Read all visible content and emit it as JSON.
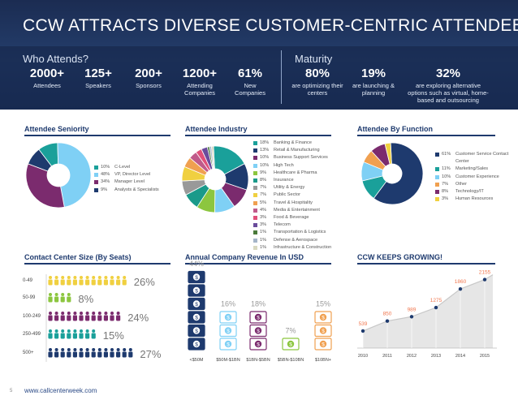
{
  "header": {
    "title": "CCW ATTRACTS DIVERSE CUSTOMER-CENTRIC ATTENDEES",
    "who_label": "Who Attends?",
    "maturity_label": "Maturity"
  },
  "who_stats": [
    {
      "num": "2000+",
      "label": "Attendees"
    },
    {
      "num": "125+",
      "label": "Speakers"
    },
    {
      "num": "200+",
      "label": "Sponsors"
    },
    {
      "num": "1200+",
      "label": "Attending Companies"
    },
    {
      "num": "61%",
      "label": "New Companies"
    }
  ],
  "maturity_stats": [
    {
      "num": "80%",
      "label": "are optimizing their centers"
    },
    {
      "num": "19%",
      "label": "are launching & planning"
    },
    {
      "num": "32%",
      "label": "are exploring alternative options such as virtual, home-based and outsourcing"
    }
  ],
  "panels": {
    "seniority": "Attendee Seniority",
    "industry": "Attendee Industry",
    "function": "Attendee By Function",
    "center_size": "Contact Center Size (By Seats)",
    "revenue": "Annual Company Revenue In USD",
    "growing": "CCW KEEPS GROWING!"
  },
  "colors": {
    "navy": "#1e3a6e",
    "teal": "#1aa09a",
    "purple": "#7b2b6e",
    "green": "#8cc63f",
    "lightblue": "#7fd0f5",
    "gray": "#999999",
    "orange": "#f0a050"
  },
  "footer": {
    "page": "5",
    "url": "www.callcenterweek.com"
  },
  "chart_data": [
    {
      "type": "pie",
      "title": "Attendee Seniority",
      "categories": [
        "C-Level",
        "VP, Director Level",
        "Manager Level",
        "Analysts & Specialists"
      ],
      "values": [
        10,
        48,
        34,
        9
      ],
      "labels": [
        "10%",
        "48%",
        "34%",
        "9%"
      ],
      "colors": [
        "#1aa09a",
        "#7fd0f5",
        "#7b2b6e",
        "#1e3a6e"
      ]
    },
    {
      "type": "pie",
      "title": "Attendee Industry",
      "categories": [
        "Banking & Finance",
        "Retail & Manufacturing",
        "Business Support Services",
        "High Tech",
        "Healthcare & Pharma",
        "Insurance",
        "Utility & Energy",
        "Public Sector",
        "Travel & Hospitality",
        "Media & Entertainment",
        "Food & Beverage",
        "Telecom",
        "Transportation & Logistics",
        "Defense & Aerospace",
        "Infrastructure & Construction"
      ],
      "values": [
        18,
        13,
        10,
        10,
        9,
        8,
        7,
        7,
        5,
        4,
        3,
        3,
        1,
        1,
        1
      ],
      "labels": [
        "18%",
        "13%",
        "10%",
        "10%",
        "9%",
        "8%",
        "7%",
        "7%",
        "5%",
        "4%",
        "3%",
        "3%",
        "1%",
        "1%",
        "1%"
      ],
      "colors": [
        "#1aa09a",
        "#1e3a6e",
        "#7b2b6e",
        "#7fd0f5",
        "#8cc63f",
        "#1a9a8a",
        "#999999",
        "#f0d040",
        "#f0a050",
        "#c05a8a",
        "#e0507a",
        "#6a4c9c",
        "#4a7a3a",
        "#a5b5c8",
        "#d8d8c0"
      ]
    },
    {
      "type": "pie",
      "title": "Attendee By Function",
      "categories": [
        "Customer Service Contact Center",
        "Marketing/Sales",
        "Customer Experience",
        "Other",
        "Technology/IT",
        "Human Resources"
      ],
      "values": [
        61,
        11,
        10,
        7,
        8,
        3
      ],
      "labels": [
        "61%",
        "11%",
        "10%",
        "7%",
        "8%",
        "3%"
      ],
      "legend": [
        "Customer Service Contact Center",
        "Marketing/Sales",
        "Customer Experience",
        "Other",
        "Technology/IT",
        "Human Resources"
      ],
      "colors": [
        "#1e3a6e",
        "#1aa09a",
        "#7fd0f5",
        "#f0a050",
        "#7b2b6e",
        "#f0d040"
      ]
    },
    {
      "type": "bar",
      "title": "Contact Center Size (By Seats)",
      "categories": [
        "0-49",
        "50-99",
        "100-249",
        "250-499",
        "500+"
      ],
      "values": [
        26,
        8,
        24,
        15,
        27
      ],
      "labels": [
        "26%",
        "8%",
        "24%",
        "15%",
        "27%"
      ],
      "icons": [
        13,
        4,
        12,
        8,
        14
      ],
      "colors": [
        "#f0d040",
        "#8cc63f",
        "#7b2b6e",
        "#1aa09a",
        "#1e3a6e"
      ]
    },
    {
      "type": "bar",
      "title": "Annual Company Revenue In USD",
      "categories": [
        "<$50M",
        "$50M-$1BN",
        "$1BN-$5BN",
        "$5BN-$10BN",
        "$10BN+"
      ],
      "values": [
        44,
        16,
        18,
        7,
        15
      ],
      "labels": [
        "44%",
        "16%",
        "18%",
        "7%",
        "15%"
      ],
      "stacks": [
        6,
        3,
        3,
        1,
        3
      ],
      "colors": [
        "#1e3a6e",
        "#7fd0f5",
        "#7b2b6e",
        "#8cc63f",
        "#f0a050"
      ]
    },
    {
      "type": "area",
      "title": "CCW KEEPS GROWING!",
      "x": [
        "2010",
        "2011",
        "2012",
        "2013",
        "2014",
        "2015"
      ],
      "values": [
        539,
        850,
        989,
        1275,
        1860,
        2155
      ],
      "xpos": [
        0,
        1,
        2,
        3,
        4,
        5
      ]
    }
  ]
}
